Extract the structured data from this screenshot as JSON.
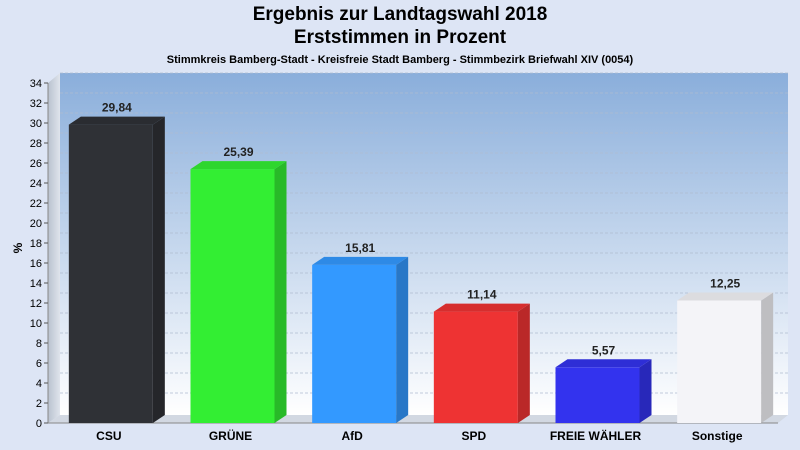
{
  "chart_data": {
    "type": "bar",
    "title_line1": "Ergebnis zur Landtagswahl 2018",
    "title_line2": "Erststimmen in Prozent",
    "subtitle": "Stimmkreis Bamberg-Stadt - Kreisfreie Stadt Bamberg - Stimmbezirk Briefwahl XIV (0054)",
    "ylabel": "%",
    "xlabel": "",
    "ylim": [
      0,
      34
    ],
    "ytick_step": 2,
    "grid": true,
    "categories": [
      "CSU",
      "GRÜNE",
      "AfD",
      "SPD",
      "FREIE WÄHLER",
      "Sonstige"
    ],
    "values": [
      29.84,
      25.39,
      15.81,
      11.14,
      5.57,
      12.25
    ],
    "value_labels": [
      "29,84",
      "25,39",
      "15,81",
      "11,14",
      "5,57",
      "12,25"
    ],
    "colors": [
      "#2f3136",
      "#33ee33",
      "#3399ff",
      "#ee3333",
      "#3333ee",
      "#f4f4f8"
    ]
  }
}
